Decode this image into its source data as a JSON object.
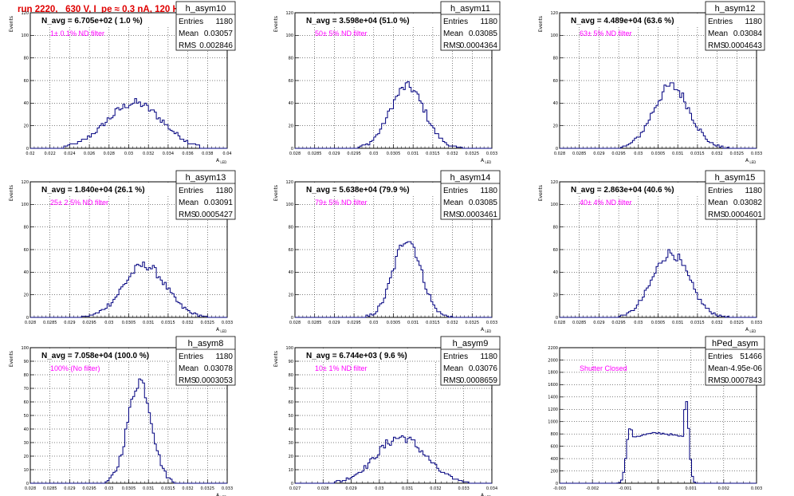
{
  "header": {
    "title": "run 2220,   630 V, I_pe ≈ 0.3 nA, 120 Hz"
  },
  "chart_data": [
    {
      "type": "bar",
      "name": "h_asym10",
      "title": "N_avg = 6.705e+02 ( 1.0 %)",
      "annotation": "1± 0.1% ND filter",
      "stats": {
        "Entries": "1180",
        "Mean": "0.03057",
        "RMS": "0.002846"
      },
      "xlabel": "A_LED",
      "ylabel": "Events",
      "xlim": [
        0.02,
        0.04
      ],
      "ylim": [
        0,
        120
      ],
      "xticks": [
        "0.02",
        "0.022",
        "0.024",
        "0.026",
        "0.028",
        "0.03",
        "0.032",
        "0.034",
        "0.036",
        "0.038",
        "0.04"
      ],
      "yticks": [
        "0",
        "20",
        "40",
        "60",
        "80",
        "100",
        "120"
      ],
      "peaks": [
        {
          "mu": 0.0306,
          "sigma": 0.0028,
          "amp": 40
        }
      ],
      "xrange": [
        0.0235,
        0.0372
      ]
    },
    {
      "type": "bar",
      "name": "h_asym11",
      "title": "N_avg = 3.598e+04 (51.0 %)",
      "annotation": "50± 5% ND filter",
      "stats": {
        "Entries": "1180",
        "Mean": "0.03085",
        "RMS": "0.0004364"
      },
      "xlabel": "A_LED",
      "ylabel": "Events",
      "xlim": [
        0.028,
        0.033
      ],
      "ylim": [
        0,
        120
      ],
      "xticks": [
        "0.028",
        "0.0285",
        "0.029",
        "0.0295",
        "0.03",
        "0.0305",
        "0.031",
        "0.0315",
        "0.032",
        "0.0325",
        "0.033"
      ],
      "yticks": [
        "0",
        "20",
        "40",
        "60",
        "80",
        "100",
        "120"
      ],
      "peaks": [
        {
          "mu": 0.03085,
          "sigma": 0.00044,
          "amp": 55
        }
      ],
      "xrange": [
        0.0296,
        0.0323
      ]
    },
    {
      "type": "bar",
      "name": "h_asym12",
      "title": "N_avg = 4.489e+04 (63.6 %)",
      "annotation": "63± 5% ND filter",
      "stats": {
        "Entries": "1180",
        "Mean": "0.03084",
        "RMS": "0.0004643"
      },
      "xlabel": "A_LED",
      "ylabel": "Events",
      "xlim": [
        0.028,
        0.033
      ],
      "ylim": [
        0,
        120
      ],
      "xticks": [
        "0.028",
        "0.0285",
        "0.029",
        "0.0295",
        "0.03",
        "0.0305",
        "0.031",
        "0.0315",
        "0.032",
        "0.0325",
        "0.033"
      ],
      "yticks": [
        "0",
        "20",
        "40",
        "60",
        "80",
        "100",
        "120"
      ],
      "peaks": [
        {
          "mu": 0.03084,
          "sigma": 0.00046,
          "amp": 55
        }
      ],
      "xrange": [
        0.0295,
        0.0323
      ]
    },
    {
      "type": "bar",
      "name": "h_asym13",
      "title": "N_avg = 1.840e+04 (26.1 %)",
      "annotation": "25± 2.5% ND filter",
      "stats": {
        "Entries": "1180",
        "Mean": "0.03091",
        "RMS": "0.0005427"
      },
      "xlabel": "A_LED",
      "ylabel": "Events",
      "xlim": [
        0.028,
        0.033
      ],
      "ylim": [
        0,
        120
      ],
      "xticks": [
        "0.028",
        "0.0285",
        "0.029",
        "0.0295",
        "0.03",
        "0.0305",
        "0.031",
        "0.0315",
        "0.032",
        "0.0325",
        "0.033"
      ],
      "yticks": [
        "0",
        "20",
        "40",
        "60",
        "80",
        "100",
        "120"
      ],
      "peaks": [
        {
          "mu": 0.0309,
          "sigma": 0.00054,
          "amp": 46
        }
      ],
      "xrange": [
        0.0293,
        0.0325
      ]
    },
    {
      "type": "bar",
      "name": "h_asym14",
      "title": "N_avg = 5.638e+04 (79.9 %)",
      "annotation": "79± 5% ND filter",
      "stats": {
        "Entries": "1180",
        "Mean": "0.03085",
        "RMS": "0.0003461"
      },
      "xlabel": "A_LED",
      "ylabel": "Events",
      "xlim": [
        0.028,
        0.033
      ],
      "ylim": [
        0,
        120
      ],
      "xticks": [
        "0.028",
        "0.0285",
        "0.029",
        "0.0295",
        "0.03",
        "0.0305",
        "0.031",
        "0.0315",
        "0.032",
        "0.0325",
        "0.033"
      ],
      "yticks": [
        "0",
        "20",
        "40",
        "60",
        "80",
        "100",
        "120"
      ],
      "peaks": [
        {
          "mu": 0.03085,
          "sigma": 0.00035,
          "amp": 70
        }
      ],
      "xrange": [
        0.0298,
        0.032
      ]
    },
    {
      "type": "bar",
      "name": "h_asym15",
      "title": "N_avg = 2.863e+04 (40.6 %)",
      "annotation": "40± 4% ND filter",
      "stats": {
        "Entries": "1180",
        "Mean": "0.03082",
        "RMS": "0.0004601"
      },
      "xlabel": "A_LED",
      "ylabel": "Events",
      "xlim": [
        0.028,
        0.033
      ],
      "ylim": [
        0,
        120
      ],
      "xticks": [
        "0.028",
        "0.0285",
        "0.029",
        "0.0295",
        "0.03",
        "0.0305",
        "0.031",
        "0.0315",
        "0.032",
        "0.0325",
        "0.033"
      ],
      "yticks": [
        "0",
        "20",
        "40",
        "60",
        "80",
        "100",
        "120"
      ],
      "peaks": [
        {
          "mu": 0.03082,
          "sigma": 0.00046,
          "amp": 57
        }
      ],
      "xrange": [
        0.0295,
        0.0323
      ]
    },
    {
      "type": "bar",
      "name": "h_asym8",
      "title": "N_avg = 7.058e+04 (100.0 %)",
      "annotation": "100% (No filter)",
      "stats": {
        "Entries": "1180",
        "Mean": "0.03078",
        "RMS": "0.0003053"
      },
      "xlabel": "A_LED",
      "ylabel": "Events",
      "xlim": [
        0.028,
        0.033
      ],
      "ylim": [
        0,
        100
      ],
      "xticks": [
        "0.028",
        "0.0285",
        "0.029",
        "0.0295",
        "0.03",
        "0.0305",
        "0.031",
        "0.0315",
        "0.032",
        "0.0325",
        "0.033"
      ],
      "yticks": [
        "0",
        "10",
        "20",
        "30",
        "40",
        "50",
        "60",
        "70",
        "80",
        "90",
        "100"
      ],
      "peaks": [
        {
          "mu": 0.03078,
          "sigma": 0.0003,
          "amp": 76
        }
      ],
      "xrange": [
        0.0299,
        0.0318
      ]
    },
    {
      "type": "bar",
      "name": "h_asym9",
      "title": "N_avg = 6.744e+03 ( 9.6 %)",
      "annotation": "10± 1% ND filter",
      "stats": {
        "Entries": "1180",
        "Mean": "0.03076",
        "RMS": "0.0008659"
      },
      "xlabel": "A_LED",
      "ylabel": "Events",
      "xlim": [
        0.027,
        0.034
      ],
      "ylim": [
        0,
        100
      ],
      "xticks": [
        "0.027",
        "0.028",
        "0.029",
        "0.03",
        "0.031",
        "0.032",
        "0.033",
        "0.034"
      ],
      "yticks": [
        "0",
        "10",
        "20",
        "30",
        "40",
        "50",
        "60",
        "70",
        "80",
        "90",
        "100"
      ],
      "peaks": [
        {
          "mu": 0.03076,
          "sigma": 0.00087,
          "amp": 34
        }
      ],
      "xrange": [
        0.0284,
        0.0332
      ]
    },
    {
      "type": "bar",
      "name": "hPed_asym",
      "title": "",
      "annotation": "Shutter Closed",
      "stats": {
        "Entries": "51466",
        "Mean": "-4.95e-06",
        "RMS": "0.0007843"
      },
      "xlabel": "",
      "ylabel": "",
      "xlim": [
        -0.003,
        0.003
      ],
      "ylim": [
        0,
        2300
      ],
      "xticks": [
        "-0.003",
        "-0.002",
        "-0.001",
        "0",
        "0.001",
        "0.002",
        "0.003"
      ],
      "yticks": [
        "0",
        "200",
        "400",
        "600",
        "800",
        "1000",
        "1200",
        "1400",
        "1600",
        "1800",
        "2000",
        "2200"
      ],
      "peaks": [
        {
          "mu": -0.00085,
          "sigma": 0.00011,
          "amp": 950
        },
        {
          "mu": 0.00085,
          "sigma": 9e-05,
          "amp": 1400
        }
      ],
      "floor": {
        "lo": -0.00085,
        "hi": 0.00085,
        "level": 820
      },
      "xrange": [
        -0.0013,
        0.00125
      ]
    }
  ]
}
